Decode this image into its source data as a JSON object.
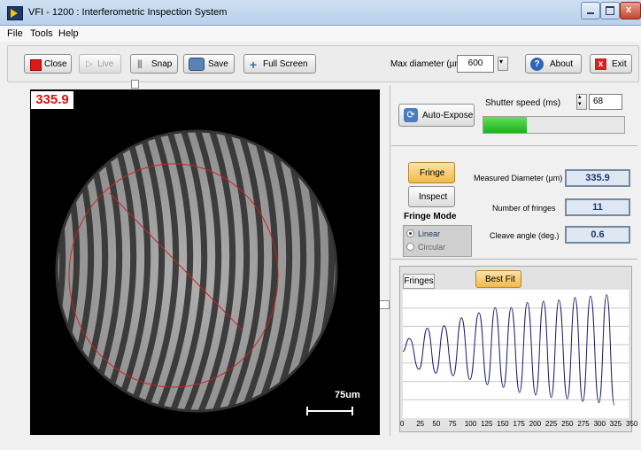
{
  "window": {
    "title": "VFI - 1200 : Interferometric Inspection System"
  },
  "menu": [
    "File",
    "Tools",
    "Help"
  ],
  "toolbar": {
    "close_label": "Close",
    "live_label": "Live",
    "snap_label": "Snap",
    "save_label": "Save",
    "fullscreen_label": "Full Screen",
    "max_diameter_label": "Max diameter (µm)",
    "max_diameter_value": "600",
    "about_label": "About",
    "exit_label": "Exit"
  },
  "image": {
    "overlay_value": "335.9",
    "scale_label": "75um"
  },
  "exposure": {
    "auto_expose_label": "Auto-Expose",
    "shutter_label": "Shutter speed (ms)",
    "shutter_value": "68",
    "exposure_level": 0.31
  },
  "measure": {
    "fringe_button": "Fringe",
    "inspect_button": "Inspect",
    "mode_title": "Fringe Mode",
    "mode_options": [
      "Linear",
      "Circular"
    ],
    "mode_selected": "Linear",
    "diameter_label": "Measured Diameter (µm)",
    "diameter_value": "335.9",
    "fringes_label": "Number of fringes",
    "fringes_value": "11",
    "cleave_label": "Cleave angle (deg.)",
    "cleave_value": "0.6"
  },
  "graph": {
    "tab_label": "Fringes",
    "best_fit_label": "Best Fit"
  },
  "chart_data": {
    "type": "line",
    "x_ticks": [
      "0",
      "25",
      "50",
      "75",
      "100",
      "125",
      "150",
      "175",
      "200",
      "225",
      "250",
      "275",
      "300",
      "325",
      "350"
    ],
    "xlim": [
      0,
      350
    ],
    "ylim": [
      0,
      1
    ],
    "grid": true,
    "peaks_x": [
      10,
      38,
      64,
      91,
      118,
      143,
      168,
      193,
      218,
      242,
      267,
      291,
      316
    ],
    "peaks_y": [
      0.62,
      0.7,
      0.72,
      0.78,
      0.82,
      0.86,
      0.86,
      0.9,
      0.91,
      0.92,
      0.94,
      0.95,
      0.96
    ],
    "troughs_x": [
      0,
      25,
      51,
      78,
      104,
      131,
      156,
      181,
      206,
      230,
      255,
      279,
      304,
      328
    ],
    "troughs_y": [
      0.52,
      0.38,
      0.35,
      0.33,
      0.3,
      0.26,
      0.24,
      0.2,
      0.18,
      0.16,
      0.15,
      0.13,
      0.12,
      0.1
    ],
    "series": [
      {
        "color": "#1a1a6e"
      }
    ]
  }
}
